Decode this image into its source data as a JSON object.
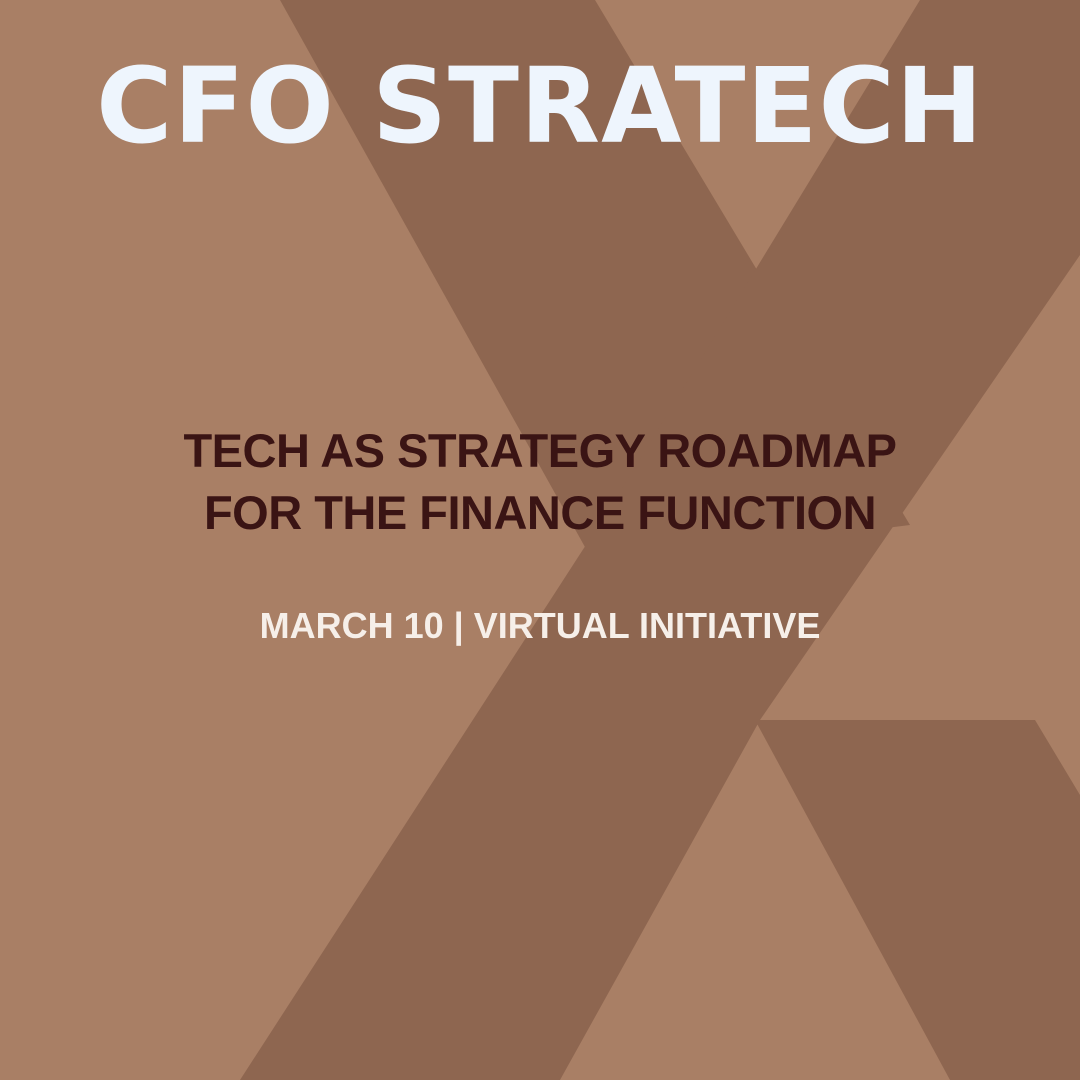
{
  "event": {
    "title": "CFO STRATECH",
    "subtitle_line1": "TECH AS STRATEGY ROADMAP",
    "subtitle_line2": "FOR THE FINANCE FUNCTION",
    "date_location": "MARCH 10 | VIRTUAL INITIATIVE"
  },
  "colors": {
    "background": "#A97F65",
    "x_shape": "#8E6650",
    "title": "#EEF5FD",
    "subtitle": "#3A1414",
    "event_info": "#F6EFE9"
  },
  "decoration": {
    "shape": "large stylized letter X"
  }
}
